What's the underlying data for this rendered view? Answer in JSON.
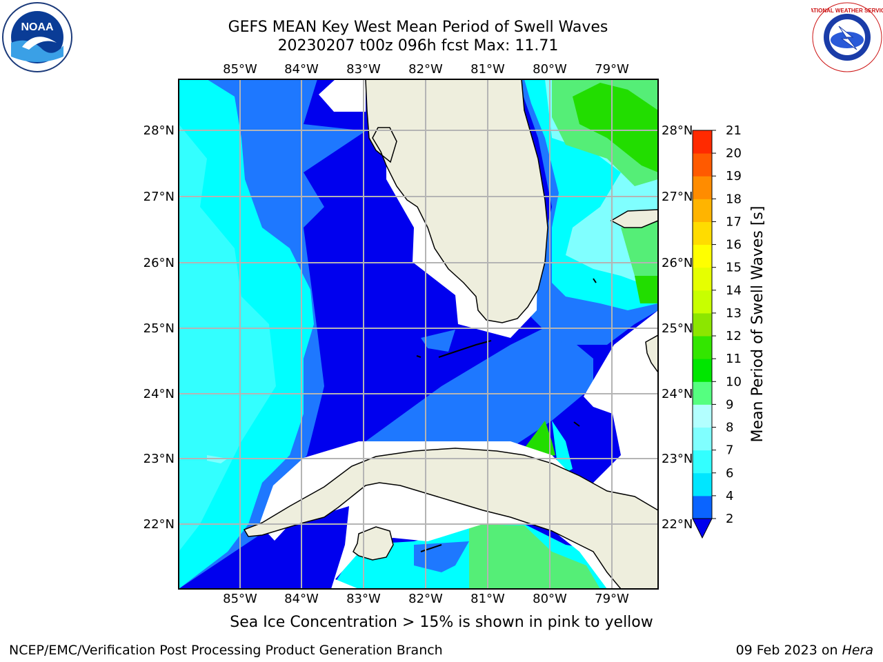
{
  "title_line1": "GEFS MEAN Key West Mean Period of Swell Waves",
  "title_line2": "20230207 t00z 096h fcst   Max: 11.71",
  "colorbar": {
    "label": "Mean Period of Swell Waves [s]",
    "ticks": [
      "2",
      "4",
      "6",
      "7",
      "8",
      "9",
      "10",
      "11",
      "12",
      "13",
      "14",
      "15",
      "16",
      "17",
      "18",
      "19",
      "20",
      "21"
    ],
    "colors": [
      "#0a64ff",
      "#00e6ff",
      "#33ffff",
      "#80ffff",
      "#b3ffff",
      "#55ff80",
      "#00e600",
      "#33e600",
      "#8ce600",
      "#c8ff00",
      "#e6ff00",
      "#ffff00",
      "#ffdc00",
      "#ffb400",
      "#ff8c00",
      "#ff5a00",
      "#ff2a00",
      "#ff0000"
    ]
  },
  "map": {
    "lon_labels": [
      "85°W",
      "84°W",
      "83°W",
      "82°W",
      "81°W",
      "80°W",
      "79°W"
    ],
    "lat_labels": [
      "22°N",
      "23°N",
      "24°N",
      "25°N",
      "26°N",
      "27°N",
      "28°N"
    ],
    "land_color": "#eeeedd",
    "ocean_colors": {
      "deep_blue": "#0000ee",
      "mid_blue": "#1e78ff",
      "cyan": "#00ffff",
      "light_cyan": "#66ffff",
      "pale_cyan": "#a8ffff",
      "green": "#55ee77",
      "bright_green": "#22dd00"
    }
  },
  "footnote": "Sea Ice Concentration > 15% is shown in pink to yellow",
  "credit": "NCEP/EMC/Verification Post Processing Product Generation Branch",
  "date_prefix": "09 Feb 2023 on ",
  "date_host": "Hera",
  "logos": {
    "noaa": "NOAA",
    "nws": "NATIONAL WEATHER SERVICE"
  }
}
